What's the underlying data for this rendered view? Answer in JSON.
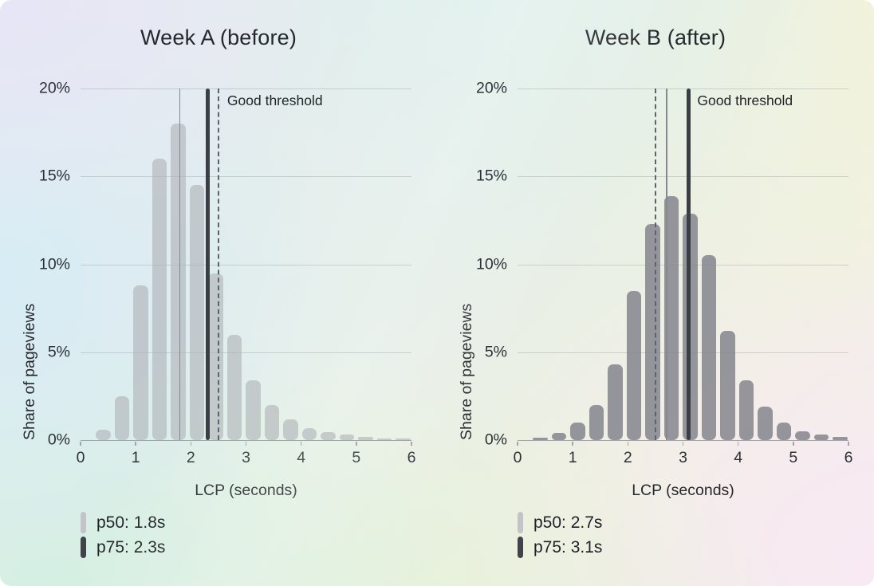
{
  "good_threshold_label": "Good threshold",
  "colors": {
    "p50_line": "#85888e",
    "p75_line": "#3a3e45",
    "threshold_line": "#5d636b",
    "grid_line": "rgba(145,155,160,0.38)",
    "axis_line": "#a2a7ab",
    "text": "#25282c",
    "legend_marker_p50": "#c2c4c8",
    "legend_marker_p75": "#3f434a"
  },
  "chart_data": [
    {
      "type": "histogram",
      "title": "Week A (before)",
      "xlabel": "LCP (seconds)",
      "ylabel": "Share of pageviews",
      "xlim": [
        0,
        6
      ],
      "ylim": [
        0,
        20
      ],
      "x_tick_values": [
        0,
        1,
        2,
        3,
        4,
        5,
        6
      ],
      "y_tick_values": [
        0,
        5,
        10,
        15,
        20
      ],
      "y_tick_labels": [
        "0%",
        "5%",
        "10%",
        "15%",
        "20%"
      ],
      "bin_width_s": 0.34,
      "bar_width_s": 0.27,
      "bin_centers_s": [
        0.41,
        0.75,
        1.09,
        1.43,
        1.77,
        2.11,
        2.45,
        2.79,
        3.13,
        3.47,
        3.81,
        4.15,
        4.49,
        4.83,
        5.17,
        5.51,
        5.85
      ],
      "values_pct": [
        0.6,
        2.5,
        8.8,
        16,
        18,
        14.5,
        9.5,
        6,
        3.4,
        2,
        1.2,
        0.7,
        0.45,
        0.3,
        0.2,
        0.1,
        0.1
      ],
      "p50_s": 1.8,
      "p75_s": 2.3,
      "good_threshold_s": 2.5,
      "threshold_label": "Good threshold",
      "legend": [
        "p50: 1.8s",
        "p75: 2.3s"
      ],
      "bar_color": "rgba(173,176,182,0.6)",
      "grid": true,
      "legend_position": "bottom-left"
    },
    {
      "type": "histogram",
      "title": "Week B (after)",
      "xlabel": "LCP (seconds)",
      "ylabel": "Share of pageviews",
      "xlim": [
        0,
        6
      ],
      "ylim": [
        0,
        20
      ],
      "x_tick_values": [
        0,
        1,
        2,
        3,
        4,
        5,
        6
      ],
      "y_tick_values": [
        0,
        5,
        10,
        15,
        20
      ],
      "y_tick_labels": [
        "0%",
        "5%",
        "10%",
        "15%",
        "20%"
      ],
      "bin_width_s": 0.34,
      "bar_width_s": 0.27,
      "bin_centers_s": [
        0.41,
        0.75,
        1.09,
        1.43,
        1.77,
        2.11,
        2.45,
        2.79,
        3.13,
        3.47,
        3.81,
        4.15,
        4.49,
        4.83,
        5.17,
        5.51,
        5.85
      ],
      "values_pct": [
        0.15,
        0.4,
        1.0,
        2.0,
        4.3,
        8.5,
        12.3,
        13.9,
        12.9,
        10.5,
        6.2,
        3.4,
        1.9,
        1.0,
        0.5,
        0.3,
        0.2
      ],
      "p50_s": 2.7,
      "p75_s": 3.1,
      "good_threshold_s": 2.5,
      "threshold_label": "Good threshold",
      "legend": [
        "p50: 2.7s",
        "p75: 3.1s"
      ],
      "bar_color": "rgba(132,133,141,0.85)",
      "grid": true,
      "legend_position": "bottom-left"
    }
  ]
}
